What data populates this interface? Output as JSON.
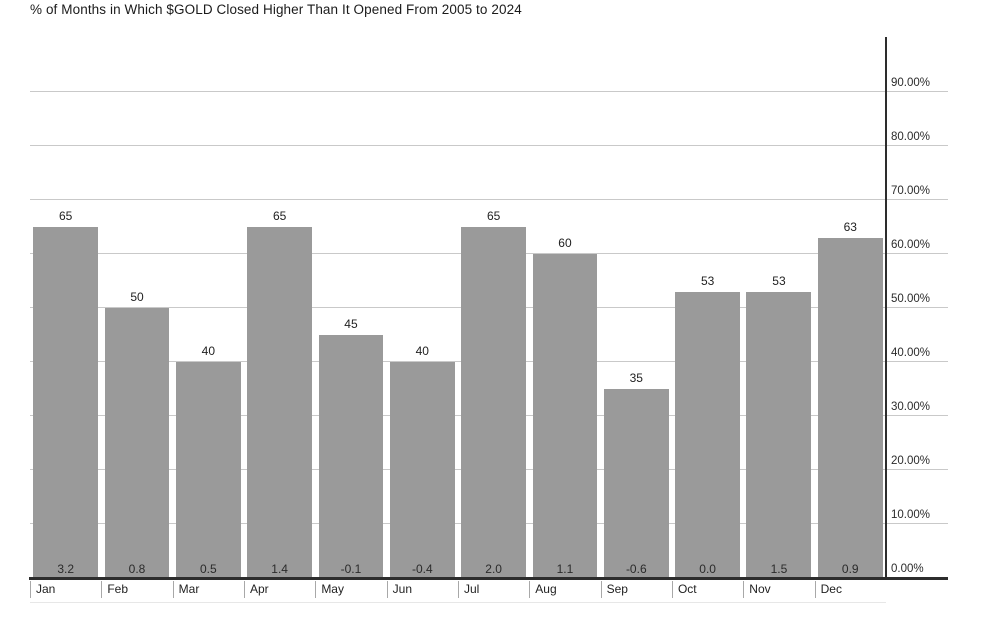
{
  "title": "% of Months in Which $GOLD Closed Higher Than It Opened From 2005 to 2024",
  "chart_data": {
    "type": "bar",
    "title": "% of Months in Which $GOLD Closed Higher Than It Opened From 2005 to 2024",
    "categories": [
      "Jan",
      "Feb",
      "Mar",
      "Apr",
      "May",
      "Jun",
      "Jul",
      "Aug",
      "Sep",
      "Oct",
      "Nov",
      "Dec"
    ],
    "series": [
      {
        "name": "percent_of_months_closed_higher",
        "values": [
          65,
          50,
          40,
          65,
          45,
          40,
          65,
          60,
          35,
          53,
          53,
          63
        ]
      },
      {
        "name": "bottom_row_values",
        "values": [
          "3.2",
          "0.8",
          "0.5",
          "1.4",
          "-0.1",
          "-0.4",
          "2.0",
          "1.1",
          "-0.6",
          "0.0",
          "1.5",
          "0.9"
        ]
      }
    ],
    "xlabel": "",
    "ylabel": "",
    "ylim": [
      0,
      100
    ],
    "y_axis_side": "right",
    "y_tick_labels": [
      "0.00%",
      "10.00%",
      "20.00%",
      "30.00%",
      "40.00%",
      "50.00%",
      "60.00%",
      "70.00%",
      "80.00%",
      "90.00%"
    ],
    "y_tick_step_percent": 10,
    "grid": true,
    "legend_position": "none",
    "colors": {
      "bar": "#9a9a9a",
      "grid": "#c9c9c9",
      "axis": "#2d2d2d",
      "text": "#222222",
      "background": "#ffffff"
    }
  }
}
